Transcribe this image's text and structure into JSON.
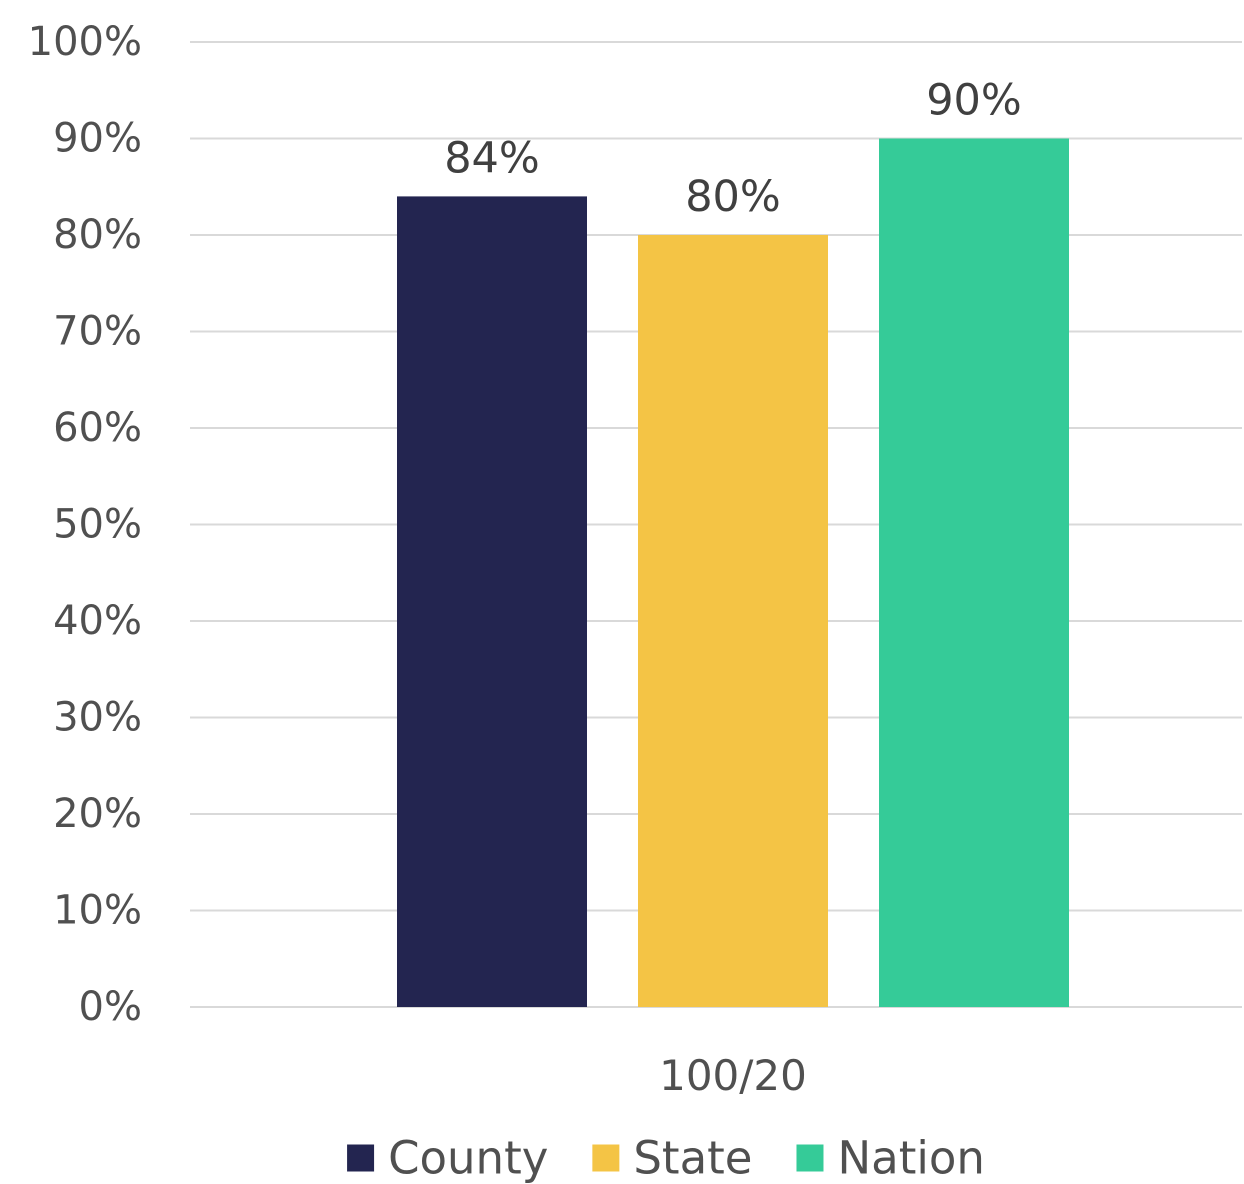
{
  "chart_data": {
    "type": "bar",
    "title": "",
    "xlabel": "",
    "ylabel": "",
    "categories": [
      "100/20"
    ],
    "series": [
      {
        "name": "County",
        "values": [
          84
        ],
        "label": "84%",
        "color": "#232550"
      },
      {
        "name": "State",
        "values": [
          80
        ],
        "label": "80%",
        "color": "#F4C445"
      },
      {
        "name": "Nation",
        "values": [
          90
        ],
        "label": "90%",
        "color": "#35CB98"
      }
    ],
    "ylim": [
      0,
      100
    ],
    "y_ticks": [
      0,
      10,
      20,
      30,
      40,
      50,
      60,
      70,
      80,
      90,
      100
    ],
    "y_tick_labels": [
      "0%",
      "10%",
      "20%",
      "30%",
      "40%",
      "50%",
      "60%",
      "70%",
      "80%",
      "90%",
      "100%"
    ],
    "grid": true,
    "gridline_color": "#d9d9d9",
    "legend_position": "bottom"
  }
}
